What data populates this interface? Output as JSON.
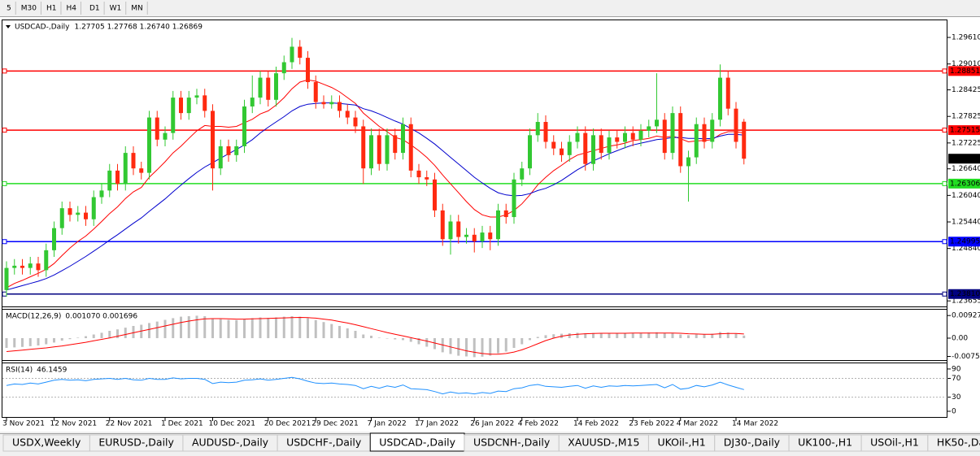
{
  "toolbar": {
    "timeframes": [
      "5",
      "M30",
      "H1",
      "H4",
      "D1",
      "W1",
      "MN"
    ]
  },
  "tabs": [
    {
      "label": "USDX,Weekly"
    },
    {
      "label": "EURUSD-,Daily"
    },
    {
      "label": "AUDUSD-,Daily"
    },
    {
      "label": "USDCHF-,Daily"
    },
    {
      "label": "USDCAD-,Daily",
      "active": true
    },
    {
      "label": "USDCNH-,Daily"
    },
    {
      "label": "XAUUSD-,M15"
    },
    {
      "label": "UKOil-,H1"
    },
    {
      "label": "DJ30-,Daily"
    },
    {
      "label": "UK100-,H1"
    },
    {
      "label": "USOil-,H1"
    },
    {
      "label": "HK50-,Daily"
    }
  ],
  "chart_data": [
    {
      "type": "candlestick",
      "title": "USDCAD-,Daily",
      "readout": "1.27705 1.27768 1.26740 1.26869",
      "up_color": "#32c832",
      "down_color": "#ff2a10",
      "categories": [
        "3 Nov 2021",
        null,
        null,
        null,
        null,
        null,
        "12 Nov 2021",
        null,
        null,
        null,
        null,
        null,
        null,
        "22 Nov 2021",
        null,
        null,
        null,
        null,
        null,
        null,
        "1 Dec 2021",
        null,
        null,
        null,
        null,
        null,
        "10 Dec 2021",
        null,
        null,
        null,
        null,
        null,
        null,
        "20 Dec 2021",
        null,
        null,
        null,
        null,
        null,
        "29 Dec 2021",
        null,
        null,
        null,
        null,
        null,
        null,
        "7 Jan 2022",
        null,
        null,
        null,
        null,
        null,
        "17 Jan 2022",
        null,
        null,
        null,
        null,
        null,
        null,
        "26 Jan 2022",
        null,
        null,
        null,
        null,
        null,
        "4 Feb 2022",
        null,
        null,
        null,
        null,
        null,
        null,
        "14 Feb 2022",
        null,
        null,
        null,
        null,
        null,
        null,
        "23 Feb 2022",
        null,
        null,
        null,
        null,
        null,
        "4 Mar 2022",
        null,
        null,
        null,
        null,
        null,
        null,
        "14 Mar 2022",
        null
      ],
      "open": [
        1.239,
        1.244,
        1.2445,
        1.244,
        1.245,
        1.2435,
        1.248,
        1.253,
        1.2575,
        1.256,
        1.2565,
        1.255,
        1.26,
        1.2615,
        1.266,
        1.263,
        1.27,
        1.2665,
        1.2655,
        1.278,
        1.273,
        1.2745,
        1.2825,
        1.279,
        1.2825,
        1.283,
        1.2795,
        1.2665,
        1.2715,
        1.2695,
        1.2715,
        1.2805,
        1.2825,
        1.287,
        1.282,
        1.288,
        1.2905,
        1.294,
        1.2915,
        1.286,
        1.2815,
        1.281,
        1.2815,
        1.2795,
        1.278,
        1.276,
        1.2665,
        1.274,
        1.2675,
        1.274,
        1.27,
        1.2765,
        1.266,
        1.2645,
        1.264,
        1.257,
        1.2505,
        1.2545,
        1.251,
        1.2515,
        1.25,
        1.252,
        1.2505,
        1.257,
        1.2555,
        1.264,
        1.2665,
        1.274,
        1.277,
        1.2725,
        1.271,
        1.2695,
        1.2725,
        1.2745,
        1.2675,
        1.274,
        1.27,
        1.2735,
        1.2725,
        1.2745,
        1.273,
        1.275,
        1.276,
        1.2775,
        1.27,
        1.279,
        1.267,
        1.269,
        1.2765,
        1.2725,
        1.2775,
        1.287,
        1.28,
        1.27705
      ],
      "high": [
        1.2455,
        1.246,
        1.246,
        1.2465,
        1.2465,
        1.2495,
        1.2545,
        1.259,
        1.259,
        1.258,
        1.258,
        1.2615,
        1.263,
        1.2675,
        1.2675,
        1.2715,
        1.2715,
        1.268,
        1.2795,
        1.2795,
        1.276,
        1.284,
        1.284,
        1.284,
        1.2845,
        1.2845,
        1.281,
        1.273,
        1.273,
        1.273,
        1.282,
        1.2875,
        1.2885,
        1.2885,
        1.2895,
        1.292,
        1.296,
        1.2955,
        1.293,
        1.2875,
        1.283,
        1.283,
        1.283,
        1.281,
        1.2795,
        1.2775,
        1.2755,
        1.2755,
        1.2755,
        1.2755,
        1.278,
        1.278,
        1.2675,
        1.266,
        1.2655,
        1.2585,
        1.256,
        1.256,
        1.253,
        1.253,
        1.2535,
        1.2535,
        1.2585,
        1.2585,
        1.2655,
        1.268,
        1.2755,
        1.279,
        1.2785,
        1.274,
        1.2725,
        1.274,
        1.276,
        1.276,
        1.2755,
        1.2755,
        1.275,
        1.275,
        1.276,
        1.276,
        1.2765,
        1.2775,
        1.288,
        1.279,
        1.2805,
        1.2805,
        1.2705,
        1.278,
        1.278,
        1.279,
        1.29,
        1.2885,
        1.2815,
        1.27768
      ],
      "low": [
        1.2375,
        1.2425,
        1.2425,
        1.2425,
        1.242,
        1.242,
        1.2465,
        1.2515,
        1.2545,
        1.2545,
        1.2535,
        1.2535,
        1.2585,
        1.26,
        1.2615,
        1.2615,
        1.265,
        1.264,
        1.264,
        1.2715,
        1.2715,
        1.273,
        1.2775,
        1.2775,
        1.281,
        1.278,
        1.2615,
        1.265,
        1.268,
        1.268,
        1.27,
        1.279,
        1.281,
        1.2805,
        1.2805,
        1.2865,
        1.289,
        1.29,
        1.2845,
        1.28,
        1.28,
        1.28,
        1.278,
        1.2765,
        1.2745,
        1.263,
        1.265,
        1.266,
        1.266,
        1.2685,
        1.2685,
        1.2645,
        1.263,
        1.2625,
        1.2555,
        1.249,
        1.247,
        1.2495,
        1.2495,
        1.2475,
        1.2485,
        1.248,
        1.249,
        1.254,
        1.254,
        1.2625,
        1.265,
        1.2725,
        1.271,
        1.2695,
        1.268,
        1.268,
        1.271,
        1.266,
        1.266,
        1.2685,
        1.2685,
        1.271,
        1.271,
        1.2715,
        1.2715,
        1.2735,
        1.2745,
        1.2685,
        1.2685,
        1.2655,
        1.259,
        1.2675,
        1.271,
        1.271,
        1.276,
        1.2785,
        1.271,
        1.2674
      ],
      "close": [
        1.244,
        1.2445,
        1.244,
        1.245,
        1.2435,
        1.248,
        1.253,
        1.2575,
        1.256,
        1.2565,
        1.255,
        1.26,
        1.2615,
        1.266,
        1.263,
        1.27,
        1.2665,
        1.2655,
        1.278,
        1.273,
        1.2745,
        1.2825,
        1.279,
        1.2825,
        1.283,
        1.2795,
        1.2665,
        1.2715,
        1.2695,
        1.2715,
        1.2805,
        1.2825,
        1.287,
        1.282,
        1.288,
        1.2905,
        1.294,
        1.2915,
        1.286,
        1.2815,
        1.281,
        1.2815,
        1.2795,
        1.278,
        1.276,
        1.2665,
        1.274,
        1.2675,
        1.274,
        1.27,
        1.2765,
        1.266,
        1.2645,
        1.264,
        1.257,
        1.2505,
        1.2545,
        1.251,
        1.2515,
        1.25,
        1.252,
        1.2505,
        1.257,
        1.2555,
        1.264,
        1.2665,
        1.274,
        1.277,
        1.2725,
        1.271,
        1.2695,
        1.2725,
        1.2745,
        1.2675,
        1.274,
        1.27,
        1.2735,
        1.2725,
        1.2745,
        1.273,
        1.275,
        1.276,
        1.2775,
        1.27,
        1.279,
        1.267,
        1.269,
        1.2765,
        1.2725,
        1.2775,
        1.287,
        1.28,
        1.2725,
        1.26869
      ],
      "series": [
        {
          "color": "#ff0000",
          "values": [
            1.2395,
            1.2405,
            1.2412,
            1.242,
            1.2428,
            1.2437,
            1.245,
            1.2468,
            1.2485,
            1.25,
            1.2512,
            1.2528,
            1.2545,
            1.2563,
            1.2578,
            1.2597,
            1.2612,
            1.2622,
            1.2645,
            1.2662,
            1.268,
            1.27,
            1.2715,
            1.2733,
            1.275,
            1.2762,
            1.276,
            1.276,
            1.2758,
            1.276,
            1.2768,
            1.2776,
            1.2788,
            1.2795,
            1.2808,
            1.2825,
            1.2845,
            1.286,
            1.2865,
            1.2862,
            1.2855,
            1.2848,
            1.2838,
            1.2825,
            1.2812,
            1.279,
            1.2775,
            1.276,
            1.2748,
            1.2735,
            1.273,
            1.2718,
            1.2705,
            1.269,
            1.2672,
            1.265,
            1.263,
            1.261,
            1.259,
            1.2572,
            1.256,
            1.2555,
            1.2555,
            1.256,
            1.257,
            1.2585,
            1.2605,
            1.2628,
            1.2645,
            1.266,
            1.2672,
            1.2685,
            1.2695,
            1.27,
            1.2705,
            1.271,
            1.2715,
            1.2718,
            1.2722,
            1.2728,
            1.273,
            1.2733,
            1.2738,
            1.2735,
            1.2738,
            1.2732,
            1.2725,
            1.2727,
            1.2728,
            1.273,
            1.2742,
            1.2748,
            1.2748,
            1.2745
          ]
        },
        {
          "color": "#0000cd",
          "values": [
            1.239,
            1.2395,
            1.24,
            1.2405,
            1.241,
            1.2416,
            1.2424,
            1.2434,
            1.2444,
            1.2455,
            1.2466,
            1.2478,
            1.249,
            1.2503,
            1.2515,
            1.2528,
            1.2541,
            1.2553,
            1.2568,
            1.2582,
            1.2596,
            1.2612,
            1.2627,
            1.2642,
            1.2656,
            1.2668,
            1.2678,
            1.2688,
            1.2698,
            1.2708,
            1.2718,
            1.273,
            1.2745,
            1.2758,
            1.277,
            1.2782,
            1.2795,
            1.2805,
            1.281,
            1.2812,
            1.2813,
            1.2813,
            1.2812,
            1.281,
            1.2808,
            1.28,
            1.2795,
            1.2788,
            1.278,
            1.2772,
            1.2765,
            1.2755,
            1.2745,
            1.2733,
            1.272,
            1.2705,
            1.269,
            1.2675,
            1.266,
            1.2645,
            1.2632,
            1.262,
            1.261,
            1.2605,
            1.2603,
            1.2604,
            1.2608,
            1.2615,
            1.262,
            1.2628,
            1.2638,
            1.265,
            1.2662,
            1.2672,
            1.2682,
            1.269,
            1.2698,
            1.2705,
            1.2712,
            1.2718,
            1.2722,
            1.2726,
            1.273,
            1.2732,
            1.2735,
            1.2735,
            1.2733,
            1.2733,
            1.2732,
            1.2733,
            1.2738,
            1.2742,
            1.2742,
            1.274
          ]
        }
      ],
      "levels": [
        {
          "price": 1.28851,
          "color": "#ff0000"
        },
        {
          "price": 1.27515,
          "color": "#ff0000"
        },
        {
          "price": 1.26306,
          "color": "#22dd22"
        },
        {
          "price": 1.24995,
          "color": "#0000ff"
        },
        {
          "price": {
            "value": 1.2381,
            "label": "1.23810"
          },
          "color": "#000080"
        }
      ],
      "ylim": [
        1.2364,
        1.2996
      ],
      "yticks": [
        {
          "value": 1.2961,
          "label": "1.29610"
        },
        {
          "value": 1.2901,
          "label": "1.29010"
        },
        1.28425,
        1.27825,
        1.27225,
        {
          "value": 1.2664,
          "label": "1.26640"
        },
        {
          "value": 1.2604,
          "label": "1.26040"
        },
        {
          "value": 1.2544,
          "label": "1.25440"
        },
        {
          "value": 1.2484,
          "label": "1.24840"
        },
        1.23655
      ]
    },
    {
      "type": "macd",
      "title": "MACD(12,26,9)",
      "readout": "0.001070 0.001696",
      "histogram": {
        "color": "#c0c0c0",
        "values": [
          -0.004,
          -0.0038,
          -0.0036,
          -0.0033,
          -0.003,
          -0.0025,
          -0.0018,
          -0.001,
          -0.0004,
          0.0002,
          0.0008,
          0.0015,
          0.0022,
          0.003,
          0.0036,
          0.0043,
          0.005,
          0.0055,
          0.0062,
          0.0068,
          0.0075,
          0.0082,
          0.0088,
          0.009,
          0.0092,
          0.009,
          0.008,
          0.0078,
          0.0075,
          0.0074,
          0.0078,
          0.0082,
          0.0085,
          0.0083,
          0.0085,
          0.0088,
          0.009,
          0.0088,
          0.0082,
          0.0074,
          0.0066,
          0.0058,
          0.005,
          0.004,
          0.003,
          0.0015,
          0.001,
          0.0002,
          0.0,
          -0.0005,
          -0.0008,
          -0.0015,
          -0.0025,
          -0.0035,
          -0.0045,
          -0.0058,
          -0.0065,
          -0.0072,
          -0.0075,
          -0.0078,
          -0.0076,
          -0.0072,
          -0.0062,
          -0.0055,
          -0.004,
          -0.0025,
          -0.0008,
          0.0005,
          0.0012,
          0.0016,
          0.0018,
          0.002,
          0.0022,
          0.002,
          0.0021,
          0.002,
          0.0021,
          0.002,
          0.0021,
          0.0021,
          0.0022,
          0.0023,
          0.0024,
          0.002,
          0.0022,
          0.0015,
          0.0012,
          0.0015,
          0.0015,
          0.0018,
          0.0025,
          0.0023,
          0.0018,
          0.00107
        ]
      },
      "signal": {
        "color": "#ff0000",
        "values": [
          -0.0055,
          -0.0052,
          -0.0049,
          -0.0046,
          -0.0043,
          -0.004,
          -0.0036,
          -0.0032,
          -0.0027,
          -0.0022,
          -0.0017,
          -0.0011,
          -0.0005,
          0.0001,
          0.0008,
          0.0015,
          0.0022,
          0.0029,
          0.0036,
          0.0043,
          0.005,
          0.0057,
          0.0064,
          0.007,
          0.0075,
          0.0079,
          0.008,
          0.008,
          0.0079,
          0.0078,
          0.0078,
          0.0079,
          0.008,
          0.0081,
          0.0082,
          0.0083,
          0.0084,
          0.0085,
          0.0084,
          0.0082,
          0.0078,
          0.0074,
          0.0068,
          0.0062,
          0.0055,
          0.0047,
          0.0039,
          0.0031,
          0.0023,
          0.0016,
          0.0009,
          0.0002,
          -0.0005,
          -0.0012,
          -0.002,
          -0.0028,
          -0.0036,
          -0.0044,
          -0.0052,
          -0.0058,
          -0.0063,
          -0.0066,
          -0.0066,
          -0.0063,
          -0.0057,
          -0.0048,
          -0.0036,
          -0.0023,
          -0.001,
          0.0,
          0.0008,
          0.0013,
          0.0016,
          0.0018,
          0.0019,
          0.002,
          0.002,
          0.002,
          0.002,
          0.0021,
          0.0021,
          0.0021,
          0.0021,
          0.0021,
          0.0021,
          0.002,
          0.0018,
          0.0017,
          0.0016,
          0.0016,
          0.0018,
          0.0019,
          0.0019,
          0.001696
        ]
      },
      "ylim": [
        -0.00833,
        0.01167
      ],
      "yticks": [
        0.009278,
        {
          "value": 0,
          "label": "0.00"
        },
        {
          "value": -0.0075,
          "label": "-0.00750"
        }
      ]
    },
    {
      "type": "line",
      "title": "RSI(14)",
      "series": [
        {
          "color": "#1e90ff",
          "values": [
            55,
            58,
            57,
            60,
            58,
            62,
            66,
            68,
            66,
            67,
            65,
            68,
            69,
            70,
            68,
            70,
            67,
            66,
            70,
            68,
            68,
            71,
            69,
            70,
            70,
            68,
            59,
            62,
            61,
            62,
            66,
            67,
            69,
            66,
            68,
            70,
            72,
            69,
            64,
            60,
            59,
            60,
            58,
            57,
            55,
            48,
            53,
            49,
            54,
            51,
            56,
            48,
            47,
            46,
            42,
            37,
            41,
            38,
            39,
            37,
            40,
            38,
            43,
            42,
            48,
            50,
            55,
            57,
            53,
            52,
            51,
            53,
            55,
            49,
            54,
            51,
            54,
            53,
            55,
            54,
            55,
            56,
            57,
            50,
            57,
            47,
            49,
            55,
            52,
            56,
            62,
            56,
            51,
            46.1459
          ]
        }
      ],
      "levels": [
        70,
        30
      ],
      "ylim": [
        -10.4,
        102
      ],
      "yticks": [
        90,
        70,
        30,
        0
      ]
    }
  ]
}
